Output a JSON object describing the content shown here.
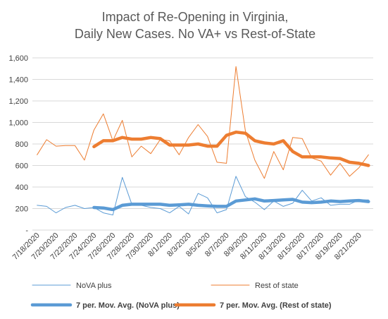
{
  "chart_data": {
    "type": "line",
    "title": [
      "Impact of Re-Opening in Virginia,",
      "Daily New Cases. No VA+ vs Rest-of-State"
    ],
    "xlabel": "",
    "ylabel": "",
    "ylim": [
      0,
      1600
    ],
    "yticks": [
      {
        "value": 0,
        "label": "-"
      },
      {
        "value": 200,
        "label": "200"
      },
      {
        "value": 400,
        "label": "400"
      },
      {
        "value": 600,
        "label": "600"
      },
      {
        "value": 800,
        "label": "800"
      },
      {
        "value": 1000,
        "label": "1,000"
      },
      {
        "value": 1200,
        "label": "1,200"
      },
      {
        "value": 1400,
        "label": "1,400"
      },
      {
        "value": 1600,
        "label": "1,600"
      }
    ],
    "grid": true,
    "legend_position": "bottom",
    "x": [
      "7/18/2020",
      "7/19/2020",
      "7/20/2020",
      "7/21/2020",
      "7/22/2020",
      "7/23/2020",
      "7/24/2020",
      "7/25/2020",
      "7/26/2020",
      "7/27/2020",
      "7/28/2020",
      "7/29/2020",
      "7/30/2020",
      "7/31/2020",
      "8/1/2020",
      "8/2/2020",
      "8/3/2020",
      "8/4/2020",
      "8/5/2020",
      "8/6/2020",
      "8/7/2020",
      "8/8/2020",
      "8/9/2020",
      "8/10/2020",
      "8/11/2020",
      "8/12/2020",
      "8/13/2020",
      "8/14/2020",
      "8/15/2020",
      "8/16/2020",
      "8/17/2020",
      "8/18/2020",
      "8/19/2020",
      "8/20/2020",
      "8/21/2020",
      "8/22/2020"
    ],
    "x_tick_labels": [
      "7/18/2020",
      "7/20/2020",
      "7/22/2020",
      "7/24/2020",
      "7/26/2020",
      "7/28/2020",
      "7/30/2020",
      "8/1/2020",
      "8/3/2020",
      "8/5/2020",
      "8/7/2020",
      "8/9/2020",
      "8/11/2020",
      "8/13/2020",
      "8/15/2020",
      "8/17/2020",
      "8/19/2020",
      "8/21/2020"
    ],
    "series": [
      {
        "name": "NoVA plus",
        "color": "#5b9bd5",
        "style": "thin",
        "values": [
          230,
          220,
          160,
          210,
          230,
          200,
          210,
          160,
          140,
          490,
          240,
          230,
          210,
          200,
          160,
          220,
          150,
          340,
          300,
          160,
          190,
          500,
          310,
          260,
          190,
          270,
          220,
          250,
          370,
          270,
          300,
          230,
          240,
          240,
          280,
          280
        ]
      },
      {
        "name": "Rest of state",
        "color": "#ed7d31",
        "style": "thin",
        "values": [
          700,
          840,
          780,
          785,
          785,
          650,
          930,
          1080,
          830,
          1020,
          680,
          780,
          710,
          840,
          830,
          700,
          860,
          980,
          870,
          630,
          620,
          1520,
          920,
          650,
          480,
          730,
          560,
          860,
          850,
          670,
          640,
          510,
          620,
          500,
          580,
          700
        ]
      },
      {
        "name": "7 per. Mov. Avg. (NoVA plus)",
        "color": "#5b9bd5",
        "style": "thick",
        "values": [
          null,
          null,
          null,
          null,
          null,
          null,
          210,
          205,
          190,
          230,
          240,
          240,
          240,
          240,
          230,
          235,
          240,
          230,
          225,
          220,
          220,
          270,
          280,
          290,
          270,
          275,
          280,
          285,
          260,
          255,
          260,
          270,
          265,
          270,
          275,
          265
        ]
      },
      {
        "name": "7 per. Mov. Avg. (Rest of state)",
        "color": "#ed7d31",
        "style": "thick",
        "values": [
          null,
          null,
          null,
          null,
          null,
          null,
          775,
          830,
          830,
          860,
          845,
          845,
          860,
          850,
          790,
          790,
          790,
          800,
          780,
          780,
          880,
          910,
          900,
          830,
          810,
          800,
          830,
          730,
          680,
          680,
          680,
          670,
          665,
          630,
          620,
          600
        ]
      }
    ]
  }
}
